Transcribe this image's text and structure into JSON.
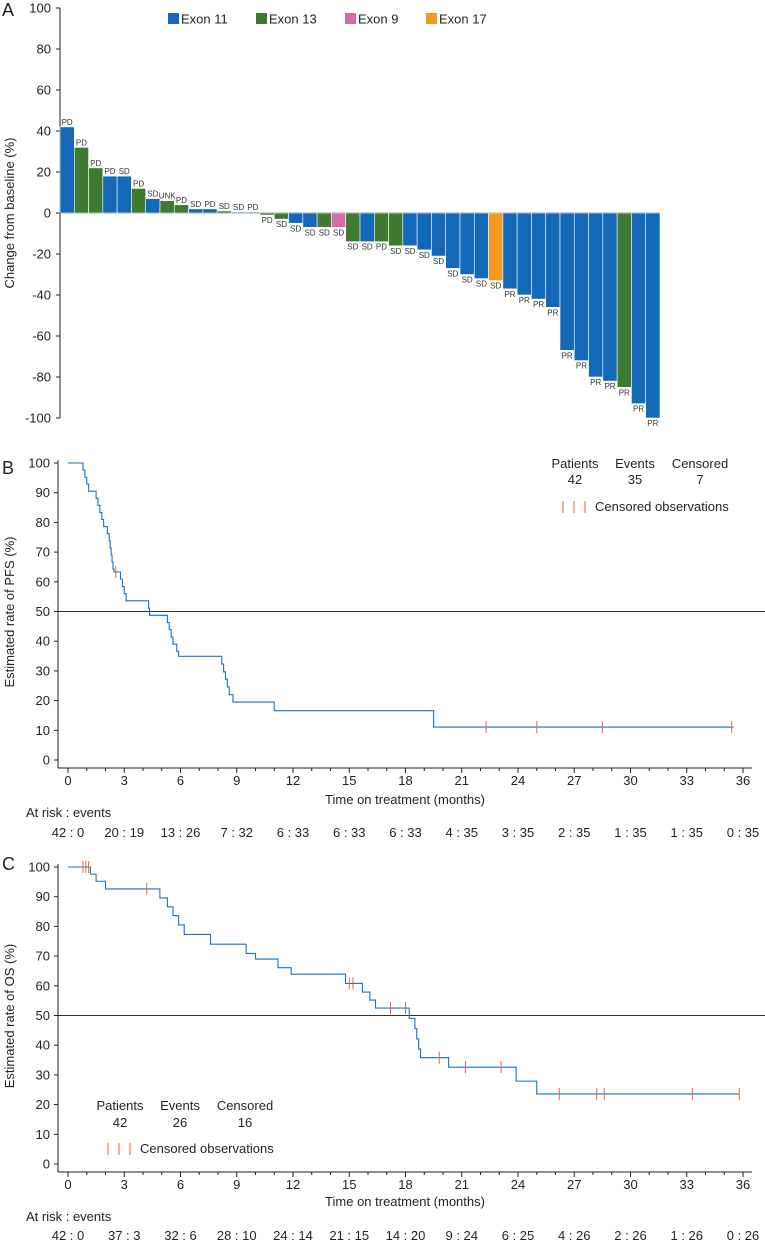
{
  "colors": {
    "exon11": "#1468b8",
    "exon13": "#3f7a32",
    "exon9": "#d66ba9",
    "exon17": "#f39a1e",
    "km": "#1a70c0",
    "censor": "#e26a3a",
    "axis": "#231f20"
  },
  "chart_data": [
    {
      "type": "bar",
      "panel": "A",
      "ylabel": "Change from baseline (%)",
      "ylim": [
        -100,
        100
      ],
      "yticks": [
        -100,
        -80,
        -60,
        -40,
        -20,
        0,
        20,
        40,
        60,
        80,
        100
      ],
      "legend": [
        {
          "name": "Exon 11",
          "key": "exon11"
        },
        {
          "name": "Exon 13",
          "key": "exon13"
        },
        {
          "name": "Exon 9",
          "key": "exon9"
        },
        {
          "name": "Exon 17",
          "key": "exon17"
        }
      ],
      "bars": [
        {
          "value": 42,
          "exon": "exon11",
          "label": "PD"
        },
        {
          "value": 32,
          "exon": "exon13",
          "label": "PD"
        },
        {
          "value": 22,
          "exon": "exon13",
          "label": "PD"
        },
        {
          "value": 18,
          "exon": "exon11",
          "label": "PD"
        },
        {
          "value": 18,
          "exon": "exon11",
          "label": "SD"
        },
        {
          "value": 12,
          "exon": "exon13",
          "label": "PD"
        },
        {
          "value": 7,
          "exon": "exon11",
          "label": "SD"
        },
        {
          "value": 6,
          "exon": "exon13",
          "label": "UNK"
        },
        {
          "value": 4,
          "exon": "exon13",
          "label": "PD"
        },
        {
          "value": 2,
          "exon": "exon11",
          "label": "SD"
        },
        {
          "value": 2,
          "exon": "exon11",
          "label": "PD"
        },
        {
          "value": 1,
          "exon": "exon13",
          "label": "SD"
        },
        {
          "value": 0.5,
          "exon": "exon11",
          "label": "SD"
        },
        {
          "value": 0.5,
          "exon": "exon11",
          "label": "PD"
        },
        {
          "value": -1,
          "exon": "exon13",
          "label": "PD"
        },
        {
          "value": -3,
          "exon": "exon13",
          "label": "SD"
        },
        {
          "value": -5,
          "exon": "exon11",
          "label": "SD"
        },
        {
          "value": -7,
          "exon": "exon11",
          "label": "SD"
        },
        {
          "value": -7,
          "exon": "exon13",
          "label": "SD"
        },
        {
          "value": -7,
          "exon": "exon9",
          "label": "SD"
        },
        {
          "value": -14,
          "exon": "exon13",
          "label": "SD"
        },
        {
          "value": -14,
          "exon": "exon11",
          "label": "SD"
        },
        {
          "value": -14,
          "exon": "exon13",
          "label": "PD"
        },
        {
          "value": -16,
          "exon": "exon13",
          "label": "SD"
        },
        {
          "value": -16,
          "exon": "exon11",
          "label": "SD"
        },
        {
          "value": -18,
          "exon": "exon11",
          "label": "SD"
        },
        {
          "value": -21,
          "exon": "exon11",
          "label": "SD"
        },
        {
          "value": -27,
          "exon": "exon11",
          "label": "SD"
        },
        {
          "value": -30,
          "exon": "exon11",
          "label": "SD"
        },
        {
          "value": -32,
          "exon": "exon11",
          "label": "SD"
        },
        {
          "value": -33,
          "exon": "exon17",
          "label": "SD"
        },
        {
          "value": -37,
          "exon": "exon11",
          "label": "PR"
        },
        {
          "value": -40,
          "exon": "exon11",
          "label": "PR"
        },
        {
          "value": -42,
          "exon": "exon11",
          "label": "PR"
        },
        {
          "value": -46,
          "exon": "exon11",
          "label": "PR"
        },
        {
          "value": -67,
          "exon": "exon11",
          "label": "PR"
        },
        {
          "value": -72,
          "exon": "exon11",
          "label": "PR"
        },
        {
          "value": -80,
          "exon": "exon11",
          "label": "PR"
        },
        {
          "value": -82,
          "exon": "exon11",
          "label": "PR"
        },
        {
          "value": -85,
          "exon": "exon13",
          "label": "PR"
        },
        {
          "value": -93,
          "exon": "exon11",
          "label": "PR"
        },
        {
          "value": -100,
          "exon": "exon11",
          "label": "PR"
        }
      ]
    },
    {
      "type": "line",
      "panel": "B",
      "ylabel": "Estimated rate of PFS (%)",
      "xlabel": "Time on treatment (months)",
      "xlim": [
        0,
        36
      ],
      "ylim": [
        0,
        100
      ],
      "xticks": [
        0,
        3,
        6,
        9,
        12,
        15,
        18,
        21,
        24,
        27,
        30,
        33,
        36
      ],
      "yticks": [
        0,
        10,
        20,
        30,
        40,
        50,
        60,
        70,
        80,
        90,
        100
      ],
      "reference_y": 50,
      "summary": {
        "headers": [
          "Patients",
          "Events",
          "Censored"
        ],
        "values": [
          "42",
          "35",
          "7"
        ]
      },
      "censor_legend": "Censored observations",
      "steps": [
        [
          0,
          100
        ],
        [
          0.7,
          100
        ],
        [
          0.8,
          97.6
        ],
        [
          0.9,
          95.2
        ],
        [
          1.0,
          92.9
        ],
        [
          1.1,
          90.5
        ],
        [
          1.5,
          88.1
        ],
        [
          1.6,
          85.7
        ],
        [
          1.7,
          83.3
        ],
        [
          1.8,
          81.0
        ],
        [
          1.9,
          78.6
        ],
        [
          2.1,
          76.2
        ],
        [
          2.2,
          73.8
        ],
        [
          2.25,
          71.4
        ],
        [
          2.3,
          69.0
        ],
        [
          2.35,
          66.7
        ],
        [
          2.4,
          64.3
        ],
        [
          2.45,
          63.3
        ],
        [
          2.8,
          60.9
        ],
        [
          2.9,
          58.4
        ],
        [
          3.0,
          56.0
        ],
        [
          3.1,
          53.6
        ],
        [
          4.3,
          51.1
        ],
        [
          4.35,
          48.7
        ],
        [
          5.3,
          46.3
        ],
        [
          5.4,
          43.9
        ],
        [
          5.5,
          41.4
        ],
        [
          5.6,
          39.0
        ],
        [
          5.8,
          36.6
        ],
        [
          5.9,
          34.9
        ],
        [
          8.2,
          32.3
        ],
        [
          8.3,
          29.7
        ],
        [
          8.4,
          27.2
        ],
        [
          8.5,
          24.6
        ],
        [
          8.6,
          22.0
        ],
        [
          8.8,
          19.5
        ],
        [
          11.0,
          16.6
        ],
        [
          19.5,
          11.1
        ],
        [
          35.5,
          11.1
        ]
      ],
      "censor_times": [
        {
          "t": 2.55,
          "s": 63.3
        },
        {
          "t": 22.3,
          "s": 11.1
        },
        {
          "t": 25.0,
          "s": 11.1
        },
        {
          "t": 28.5,
          "s": 11.1
        },
        {
          "t": 35.4,
          "s": 11.1
        }
      ],
      "risk_title": "At risk : events",
      "risk_table": [
        "42 : 0",
        "20 : 19",
        "13 : 26",
        "7 : 32",
        "6 : 33",
        "6 : 33",
        "6 : 33",
        "4 : 35",
        "3 : 35",
        "2 : 35",
        "1 : 35",
        "1 : 35",
        "0 : 35"
      ]
    },
    {
      "type": "line",
      "panel": "C",
      "ylabel": "Estimated rate of OS (%)",
      "xlabel": "Time on treatment (months)",
      "xlim": [
        0,
        36
      ],
      "ylim": [
        0,
        100
      ],
      "xticks": [
        0,
        3,
        6,
        9,
        12,
        15,
        18,
        21,
        24,
        27,
        30,
        33,
        36
      ],
      "yticks": [
        0,
        10,
        20,
        30,
        40,
        50,
        60,
        70,
        80,
        90,
        100
      ],
      "reference_y": 50,
      "summary": {
        "headers": [
          "Patients",
          "Events",
          "Censored"
        ],
        "values": [
          "42",
          "26",
          "16"
        ]
      },
      "censor_legend": "Censored observations",
      "steps": [
        [
          0,
          100
        ],
        [
          1.2,
          97.6
        ],
        [
          1.5,
          95.2
        ],
        [
          2.0,
          92.6
        ],
        [
          4.9,
          89.6
        ],
        [
          5.3,
          86.6
        ],
        [
          5.6,
          83.6
        ],
        [
          5.9,
          80.5
        ],
        [
          6.2,
          77.3
        ],
        [
          7.6,
          74.0
        ],
        [
          9.5,
          70.9
        ],
        [
          10.0,
          69.0
        ],
        [
          11.2,
          66.1
        ],
        [
          11.9,
          63.9
        ],
        [
          14.8,
          60.8
        ],
        [
          15.7,
          57.9
        ],
        [
          16.1,
          55.2
        ],
        [
          16.4,
          52.5
        ],
        [
          18.2,
          49.0
        ],
        [
          18.5,
          45.6
        ],
        [
          18.6,
          42.1
        ],
        [
          18.7,
          38.7
        ],
        [
          18.8,
          35.8
        ],
        [
          20.3,
          32.6
        ],
        [
          23.9,
          27.9
        ],
        [
          25.0,
          23.6
        ],
        [
          35.8,
          23.6
        ]
      ],
      "censor_times": [
        {
          "t": 0.8,
          "s": 100
        },
        {
          "t": 0.95,
          "s": 100
        },
        {
          "t": 1.1,
          "s": 100
        },
        {
          "t": 4.2,
          "s": 92.6
        },
        {
          "t": 15.0,
          "s": 60.8
        },
        {
          "t": 15.2,
          "s": 60.8
        },
        {
          "t": 17.2,
          "s": 52.5
        },
        {
          "t": 18.0,
          "s": 52.5
        },
        {
          "t": 19.8,
          "s": 35.8
        },
        {
          "t": 21.2,
          "s": 32.6
        },
        {
          "t": 23.1,
          "s": 32.6
        },
        {
          "t": 26.2,
          "s": 23.6
        },
        {
          "t": 28.2,
          "s": 23.6
        },
        {
          "t": 28.6,
          "s": 23.6
        },
        {
          "t": 33.3,
          "s": 23.6
        },
        {
          "t": 35.8,
          "s": 23.6
        }
      ],
      "risk_title": "At risk : events",
      "risk_table": [
        "42 : 0",
        "37 : 3",
        "32 : 6",
        "28 : 10",
        "24 : 14",
        "21 : 15",
        "14 : 20",
        "9 : 24",
        "6 : 25",
        "4 : 26",
        "2 : 26",
        "1 : 26",
        "0 : 26"
      ]
    }
  ]
}
